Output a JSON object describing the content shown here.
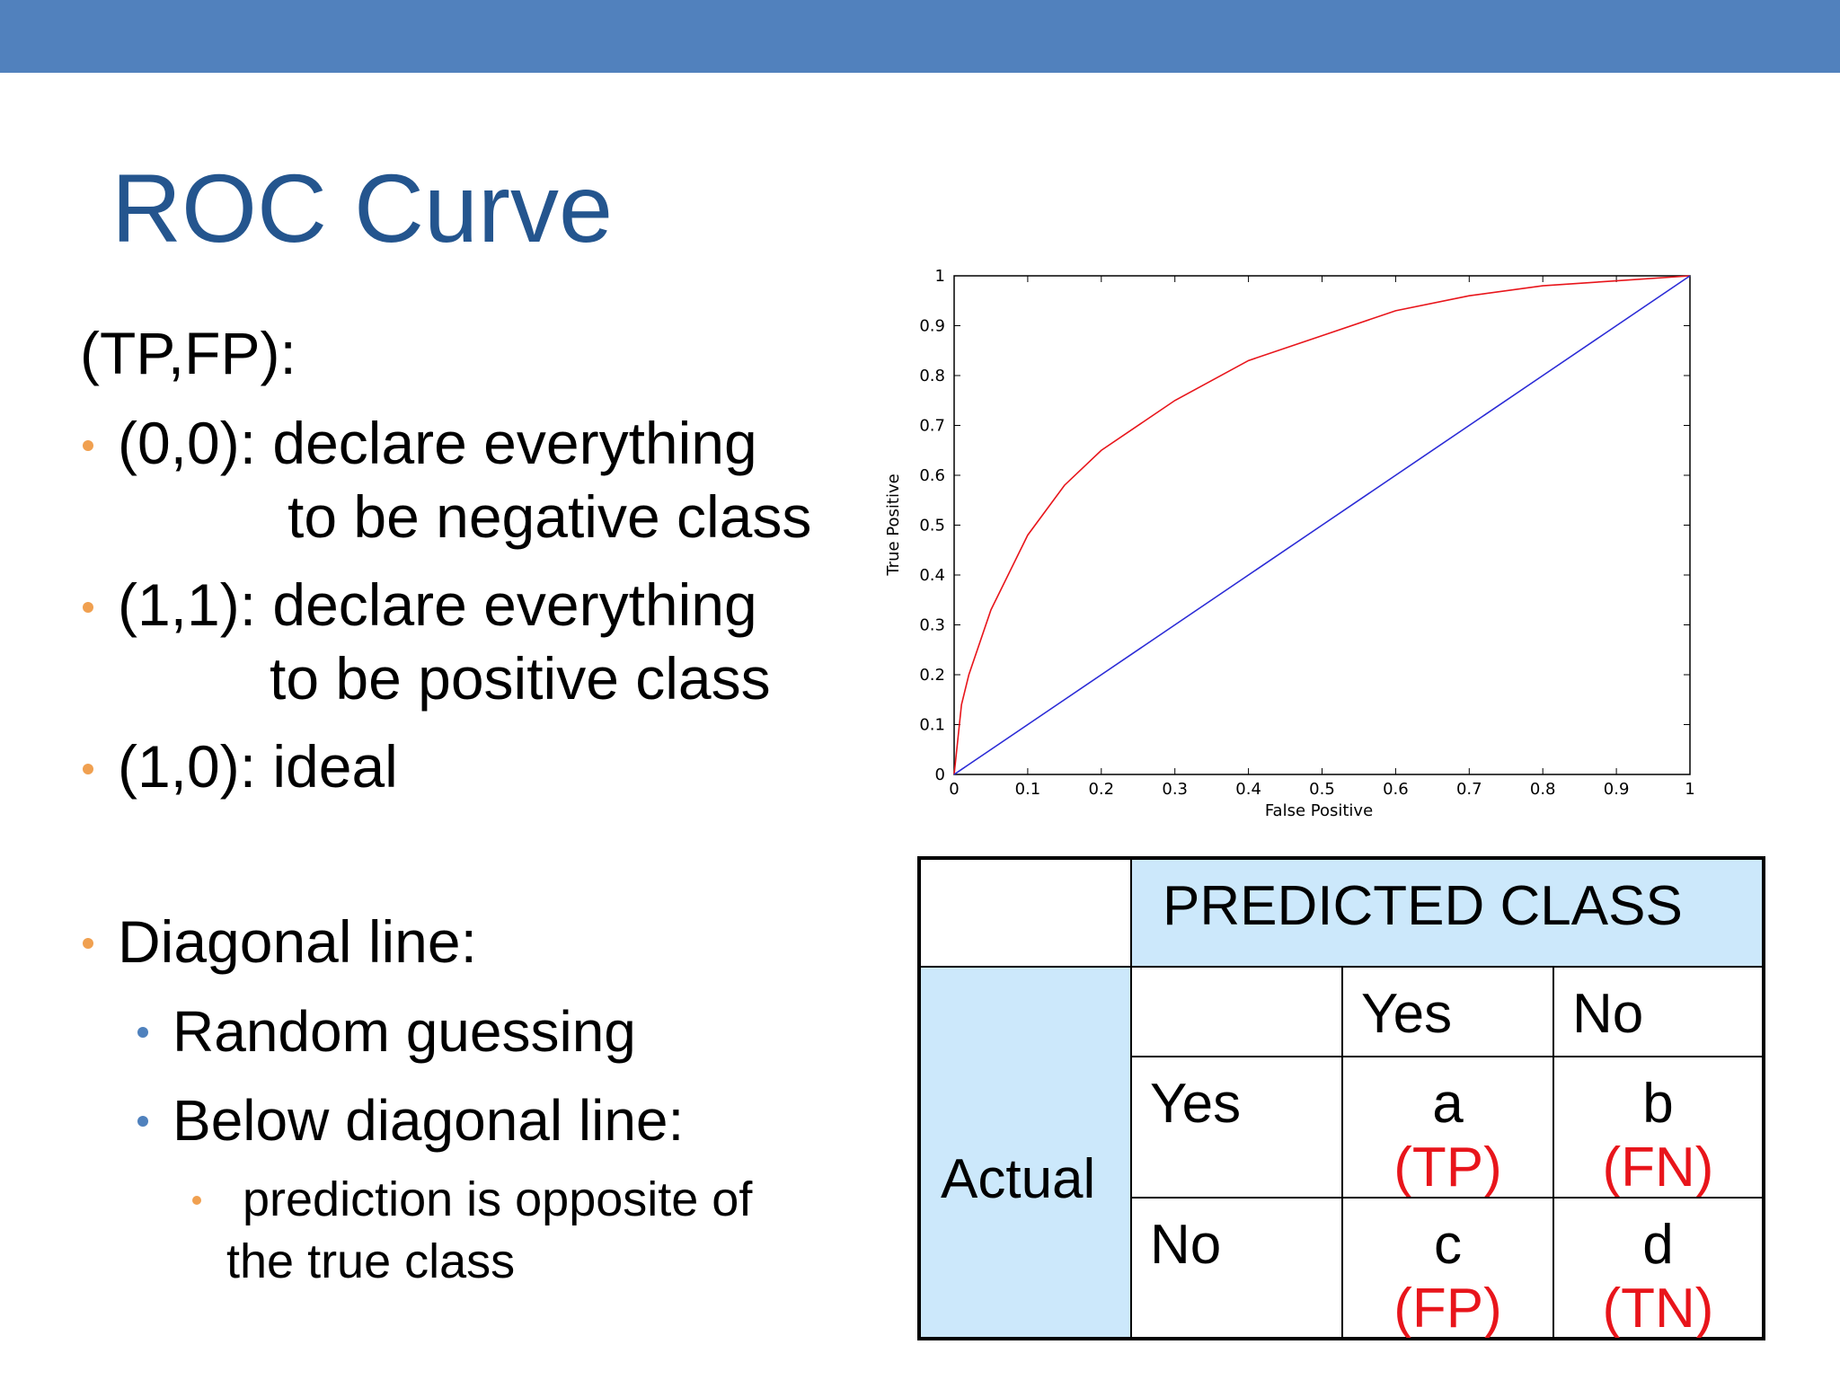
{
  "slide": {
    "title": "ROC Curve",
    "intro": "(TP,FP):",
    "bullets": [
      {
        "lines": [
          "(0,0): declare everything",
          "to be negative class"
        ]
      },
      {
        "lines": [
          "(1,1): declare everything",
          "to be positive class"
        ]
      },
      {
        "lines": [
          "(1,0): ideal"
        ]
      },
      {
        "lines": [
          "Diagonal line:"
        ]
      }
    ],
    "sub_bullets": [
      "Random guessing",
      "Below diagonal line:"
    ],
    "sub_sub_bullet": [
      "prediction is opposite of",
      "the true class"
    ]
  },
  "chart_data": {
    "type": "line",
    "xlabel": "False Positive",
    "ylabel": "True Positive",
    "x": [
      0,
      0.01,
      0.02,
      0.05,
      0.1,
      0.15,
      0.2,
      0.3,
      0.4,
      0.5,
      0.6,
      0.7,
      0.8,
      0.9,
      1
    ],
    "series": [
      {
        "color": "#e8151b",
        "values": [
          0,
          0.14,
          0.2,
          0.33,
          0.48,
          0.58,
          0.65,
          0.75,
          0.83,
          0.88,
          0.93,
          0.96,
          0.98,
          0.99,
          1
        ]
      },
      {
        "color": "#2b2bd6",
        "values": [
          0,
          0.01,
          0.02,
          0.05,
          0.1,
          0.15,
          0.2,
          0.3,
          0.4,
          0.5,
          0.6,
          0.7,
          0.8,
          0.9,
          1
        ]
      }
    ],
    "xlim": [
      0,
      1
    ],
    "ylim": [
      0,
      1
    ],
    "xticks": [
      0,
      0.1,
      0.2,
      0.3,
      0.4,
      0.5,
      0.6,
      0.7,
      0.8,
      0.9,
      1
    ],
    "yticks": [
      0,
      0.1,
      0.2,
      0.3,
      0.4,
      0.5,
      0.6,
      0.7,
      0.8,
      0.9,
      1
    ]
  },
  "table": {
    "header": "PREDICTED CLASS",
    "row_label": "Actual",
    "columns": [
      "Yes",
      "No"
    ],
    "rows": [
      {
        "label": "Yes",
        "cells": [
          {
            "letter": "a",
            "outcome": "(TP)"
          },
          {
            "letter": "b",
            "outcome": "(FN)"
          }
        ]
      },
      {
        "label": "No",
        "cells": [
          {
            "letter": "c",
            "outcome": "(FP)"
          },
          {
            "letter": "d",
            "outcome": "(TN)"
          }
        ]
      }
    ]
  }
}
